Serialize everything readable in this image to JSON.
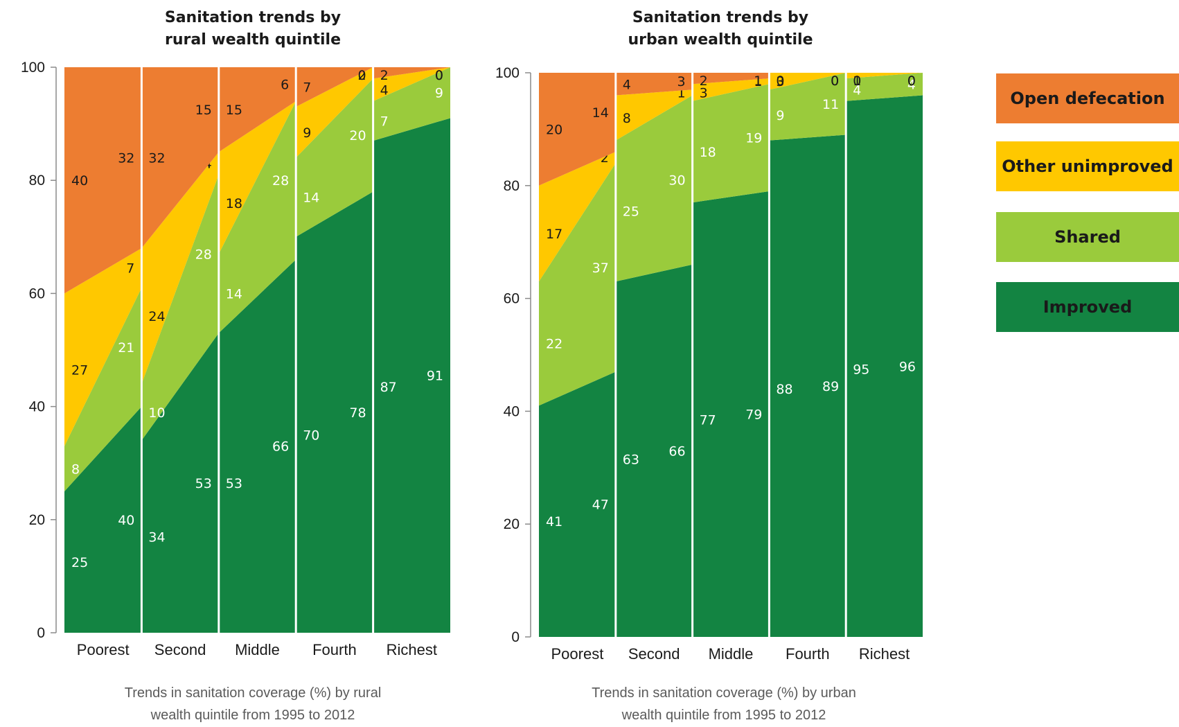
{
  "colors": {
    "open_defecation": "#ED7D31",
    "other_unimproved": "#FFC800",
    "shared": "#9ACB3C",
    "improved": "#138442"
  },
  "legend": [
    {
      "key": "open_defecation",
      "label": "Open defecation"
    },
    {
      "key": "other_unimproved",
      "label": "Other unimproved"
    },
    {
      "key": "shared",
      "label": "Shared"
    },
    {
      "key": "improved",
      "label": "Improved"
    }
  ],
  "chart_data": [
    {
      "type": "area",
      "title": "Sanitation trends by\nrural wealth quintile",
      "caption": "Trends in sanitation coverage (%) by rural\nwealth quintile from 1995 to 2012",
      "ylim": [
        0,
        100
      ],
      "yticks": [
        0,
        20,
        40,
        60,
        80,
        100
      ],
      "categories": [
        "Poorest",
        "Second",
        "Middle",
        "Fourth",
        "Richest"
      ],
      "period_endpoints": [
        "1995",
        "2012"
      ],
      "series": [
        {
          "key": "improved",
          "name": "Improved",
          "values": [
            [
              25,
              40
            ],
            [
              34,
              53
            ],
            [
              53,
              66
            ],
            [
              70,
              78
            ],
            [
              87,
              91
            ]
          ]
        },
        {
          "key": "shared",
          "name": "Shared",
          "values": [
            [
              8,
              21
            ],
            [
              10,
              28
            ],
            [
              14,
              28
            ],
            [
              14,
              20
            ],
            [
              7,
              9
            ]
          ]
        },
        {
          "key": "other_unimproved",
          "name": "Other unimproved",
          "values": [
            [
              27,
              7
            ],
            [
              24,
              4
            ],
            [
              18,
              0
            ],
            [
              9,
              2
            ],
            [
              4,
              0
            ]
          ]
        },
        {
          "key": "open_defecation",
          "name": "Open defecation",
          "values": [
            [
              40,
              32
            ],
            [
              32,
              15
            ],
            [
              15,
              6
            ],
            [
              7,
              0
            ],
            [
              2,
              0
            ]
          ]
        }
      ]
    },
    {
      "type": "area",
      "title": "Sanitation trends by\nurban wealth quintile",
      "caption": "Trends in sanitation coverage (%) by urban\nwealth quintile from 1995 to 2012",
      "ylim": [
        0,
        100
      ],
      "yticks": [
        0,
        20,
        40,
        60,
        80,
        100
      ],
      "categories": [
        "Poorest",
        "Second",
        "Middle",
        "Fourth",
        "Richest"
      ],
      "period_endpoints": [
        "1995",
        "2012"
      ],
      "series": [
        {
          "key": "improved",
          "name": "Improved",
          "values": [
            [
              41,
              47
            ],
            [
              63,
              66
            ],
            [
              77,
              79
            ],
            [
              88,
              89
            ],
            [
              95,
              96
            ]
          ]
        },
        {
          "key": "shared",
          "name": "Shared",
          "values": [
            [
              22,
              37
            ],
            [
              25,
              30
            ],
            [
              18,
              19
            ],
            [
              9,
              11
            ],
            [
              4,
              4
            ]
          ]
        },
        {
          "key": "other_unimproved",
          "name": "Other unimproved",
          "values": [
            [
              17,
              2
            ],
            [
              8,
              1
            ],
            [
              3,
              1
            ],
            [
              3,
              0
            ],
            [
              1,
              0
            ]
          ]
        },
        {
          "key": "open_defecation",
          "name": "Open defecation",
          "values": [
            [
              20,
              14
            ],
            [
              4,
              3
            ],
            [
              2,
              1
            ],
            [
              0,
              0
            ],
            [
              0,
              0
            ]
          ]
        }
      ]
    }
  ]
}
